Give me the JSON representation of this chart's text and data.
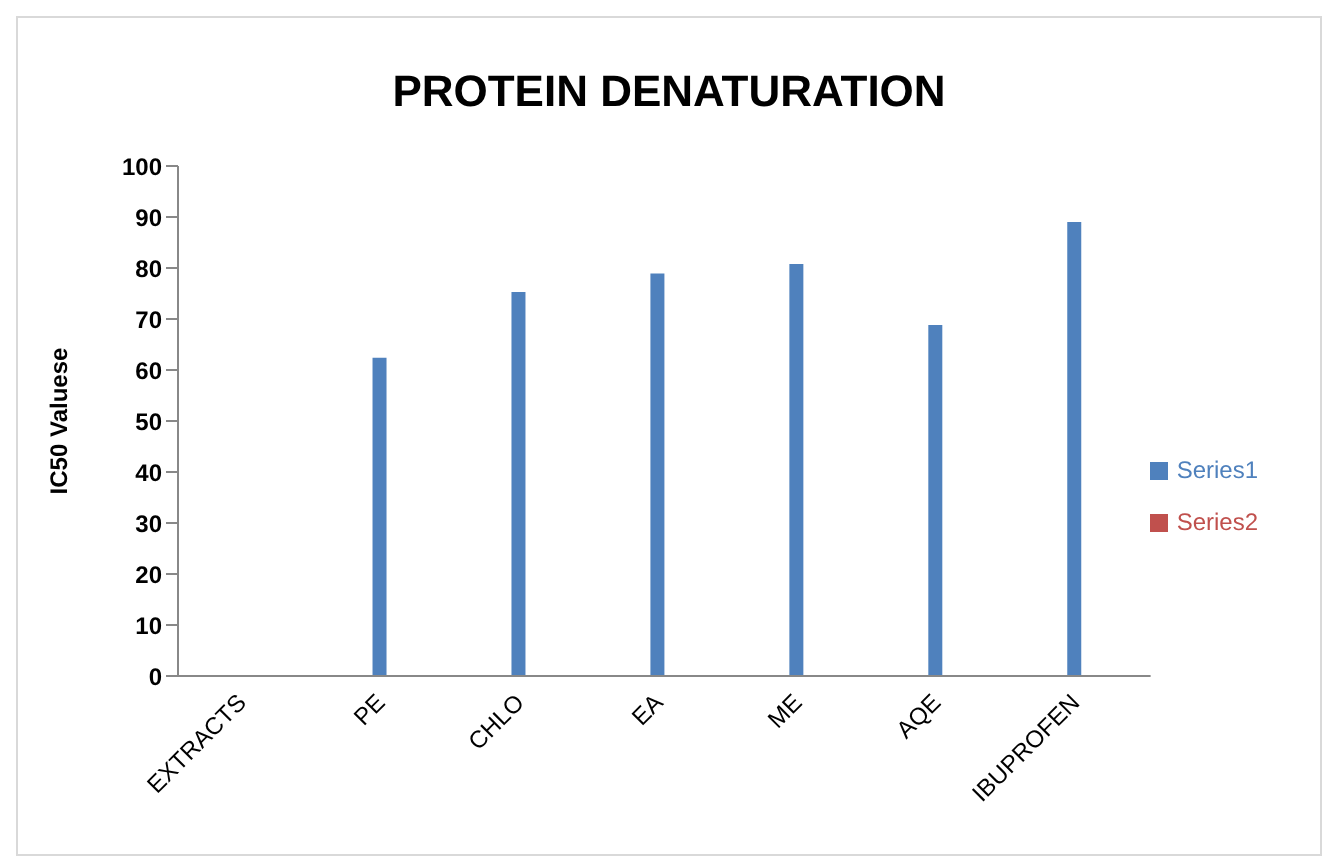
{
  "chart_data": {
    "type": "bar",
    "title": "PROTEIN DENATURATION",
    "ylabel": "IC50 Valuese",
    "categories": [
      "EXTRACTS",
      "PE",
      "CHLO",
      "EA",
      "ME",
      "AQE",
      "IBUPROFEN"
    ],
    "series": [
      {
        "name": "Series1",
        "color": "#4f81bd",
        "values": [
          null,
          62.4,
          75.3,
          78.9,
          80.8,
          68.8,
          89.0
        ]
      },
      {
        "name": "Series2",
        "color": "#c0504d",
        "values": [
          null,
          null,
          null,
          null,
          null,
          null,
          null
        ]
      }
    ],
    "ylim": [
      0,
      100
    ],
    "yticks": [
      0,
      10,
      20,
      30,
      40,
      50,
      60,
      70,
      80,
      90,
      100
    ],
    "grid": false,
    "legend": "right"
  }
}
